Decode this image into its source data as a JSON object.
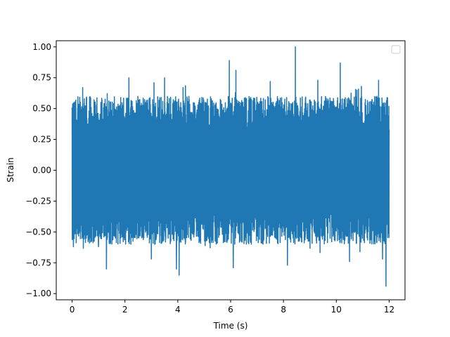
{
  "chart_data": {
    "type": "line",
    "title": "",
    "xlabel": "Time (s)",
    "ylabel": "Strain",
    "xlim": [
      -0.6,
      12.6
    ],
    "ylim": [
      -1.05,
      1.05
    ],
    "x_ticks": [
      0,
      2,
      4,
      6,
      8,
      10,
      12
    ],
    "x_tick_labels": [
      "0",
      "2",
      "4",
      "6",
      "8",
      "10",
      "12"
    ],
    "y_ticks": [
      -1.0,
      -0.75,
      -0.5,
      -0.25,
      0.0,
      0.25,
      0.5,
      0.75,
      1.0
    ],
    "y_tick_labels": [
      "−1.00",
      "−0.75",
      "−0.50",
      "−0.25",
      "0.00",
      "0.25",
      "0.50",
      "0.75",
      "1.00"
    ],
    "grid": false,
    "legend": {
      "placement": "top-right",
      "entries": []
    },
    "series": [
      {
        "color": "#1f77b4",
        "x_range": [
          0,
          12
        ],
        "min": -0.94,
        "max": 1.0,
        "typical_envelope": [
          -0.6,
          0.6
        ],
        "peaks": [
          {
            "x": 0.05,
            "y": -0.62
          },
          {
            "x": 0.4,
            "y": 0.67
          },
          {
            "x": 1.0,
            "y": -0.62
          },
          {
            "x": 1.3,
            "y": -0.8
          },
          {
            "x": 2.15,
            "y": 0.75
          },
          {
            "x": 3.0,
            "y": -0.72
          },
          {
            "x": 3.1,
            "y": 0.71
          },
          {
            "x": 3.5,
            "y": 0.75
          },
          {
            "x": 3.95,
            "y": -0.8
          },
          {
            "x": 4.05,
            "y": -0.85
          },
          {
            "x": 4.2,
            "y": 0.67
          },
          {
            "x": 5.95,
            "y": 0.89
          },
          {
            "x": 6.2,
            "y": 0.81
          },
          {
            "x": 6.1,
            "y": -0.79
          },
          {
            "x": 7.5,
            "y": 0.72
          },
          {
            "x": 8.15,
            "y": -0.77
          },
          {
            "x": 8.45,
            "y": 1.0
          },
          {
            "x": 9.3,
            "y": 0.73
          },
          {
            "x": 10.15,
            "y": 0.87
          },
          {
            "x": 10.5,
            "y": -0.74
          },
          {
            "x": 10.95,
            "y": 0.68
          },
          {
            "x": 11.6,
            "y": 0.73
          },
          {
            "x": 11.75,
            "y": -0.72
          },
          {
            "x": 11.88,
            "y": -0.94
          }
        ]
      }
    ]
  }
}
